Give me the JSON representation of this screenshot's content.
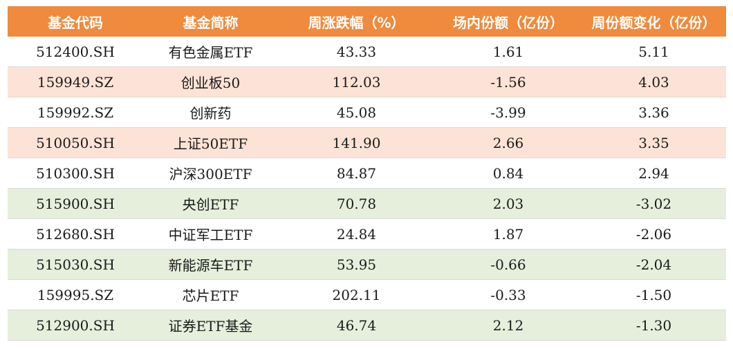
{
  "headers": [
    "基金代码",
    "基金简称",
    "周涨跌幅（%）",
    "场内份额（亿份）",
    "周份额变化（亿份）"
  ],
  "colors": {
    "header": "#f08a3c",
    "peach": "#fde3d5",
    "green": "#e6efdc",
    "white": "#ffffff"
  },
  "rows": [
    {
      "code": "512400.SH",
      "name": "有色金属ETF",
      "weekly_change": "43.33",
      "shares": "1.61",
      "share_change": "5.11",
      "shade": "white"
    },
    {
      "code": "159949.SZ",
      "name": "创业板50",
      "weekly_change": "112.03",
      "shares": "-1.56",
      "share_change": "4.03",
      "shade": "peach"
    },
    {
      "code": "159992.SZ",
      "name": "创新药",
      "weekly_change": "45.08",
      "shares": "-3.99",
      "share_change": "3.36",
      "shade": "white"
    },
    {
      "code": "510050.SH",
      "name": "上证50ETF",
      "weekly_change": "141.90",
      "shares": "2.66",
      "share_change": "3.35",
      "shade": "peach"
    },
    {
      "code": "510300.SH",
      "name": "沪深300ETF",
      "weekly_change": "84.87",
      "shares": "0.84",
      "share_change": "2.94",
      "shade": "white"
    },
    {
      "code": "515900.SH",
      "name": "央创ETF",
      "weekly_change": "70.78",
      "shares": "2.03",
      "share_change": "-3.02",
      "shade": "green"
    },
    {
      "code": "512680.SH",
      "name": "中证军工ETF",
      "weekly_change": "24.84",
      "shares": "1.87",
      "share_change": "-2.06",
      "shade": "white"
    },
    {
      "code": "515030.SH",
      "name": "新能源车ETF",
      "weekly_change": "53.95",
      "shares": "-0.66",
      "share_change": "-2.04",
      "shade": "green"
    },
    {
      "code": "159995.SZ",
      "name": "芯片ETF",
      "weekly_change": "202.11",
      "shares": "-0.33",
      "share_change": "-1.50",
      "shade": "white"
    },
    {
      "code": "512900.SH",
      "name": "证券ETF基金",
      "weekly_change": "46.74",
      "shares": "2.12",
      "share_change": "-1.30",
      "shade": "green"
    }
  ]
}
